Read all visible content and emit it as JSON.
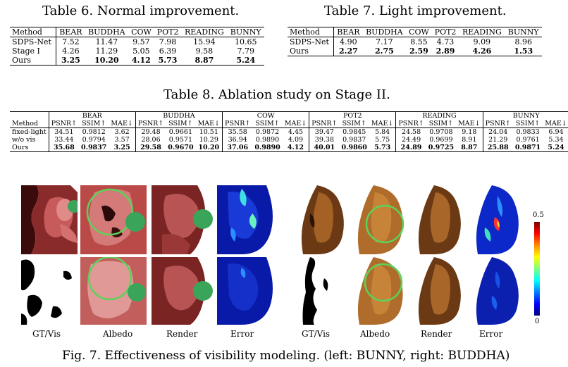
{
  "table6": {
    "caption": "Table 6. Normal improvement.",
    "headers": [
      "Method",
      "BEAR",
      "BUDDHA",
      "COW",
      "POT2",
      "READING",
      "BUNNY"
    ],
    "rows": [
      [
        "SDPS-Net",
        "7.52",
        "11.47",
        "9.57",
        "7.98",
        "15.94",
        "10.65"
      ],
      [
        "Stage I",
        "4.26",
        "11.29",
        "5.05",
        "6.39",
        "9.58",
        "7.79"
      ],
      [
        "Ours",
        "3.25",
        "10.20",
        "4.12",
        "5.73",
        "8.87",
        "5.24"
      ]
    ]
  },
  "table7": {
    "caption": "Table 7. Light improvement.",
    "headers": [
      "Method",
      "BEAR",
      "BUDDHA",
      "COW",
      "POT2",
      "READING",
      "BUNNY"
    ],
    "rows": [
      [
        "SDPS-Net",
        "4.90",
        "7.17",
        "8.55",
        "4.73",
        "9.09",
        "8.96"
      ],
      [
        "Ours",
        "2.27",
        "2.75",
        "2.59",
        "2.89",
        "4.26",
        "1.53"
      ]
    ]
  },
  "table8": {
    "caption": "Table 8. Ablation study on Stage II.",
    "method_label": "Method",
    "objects": [
      "BEAR",
      "BUDDHA",
      "COW",
      "POT2",
      "READING",
      "BUNNY"
    ],
    "metrics": [
      "PSNR↑",
      "SSIM↑",
      "MAE↓"
    ],
    "rows": [
      {
        "method": "fixed-light",
        "values": [
          "34.51",
          "0.9812",
          "3.62",
          "29.48",
          "0.9661",
          "10.51",
          "35.58",
          "0.9872",
          "4.45",
          "39.47",
          "0.9845",
          "5.84",
          "24.58",
          "0.9708",
          "9.18",
          "24.04",
          "0.9833",
          "6.94"
        ]
      },
      {
        "method": "w/o vis",
        "values": [
          "33.44",
          "0.9794",
          "3.57",
          "28.06",
          "0.9571",
          "10.29",
          "36.94",
          "0.9890",
          "4.09",
          "39.38",
          "0.9837",
          "5.75",
          "24.49",
          "0.9699",
          "8.91",
          "21.29",
          "0.9761",
          "5.34"
        ]
      },
      {
        "method": "Ours",
        "values": [
          "35.68",
          "0.9837",
          "3.25",
          "29.58",
          "0.9670",
          "10.20",
          "37.06",
          "0.9890",
          "4.12",
          "40.01",
          "0.9860",
          "5.73",
          "24.89",
          "0.9725",
          "8.87",
          "25.88",
          "0.9871",
          "5.24"
        ]
      }
    ]
  },
  "figure": {
    "column_labels_left": [
      "GT/Vis",
      "Albedo",
      "Render",
      "Error"
    ],
    "column_labels_right": [
      "GT/Vis",
      "Albedo",
      "Render",
      "Error"
    ],
    "colorbar_max": "0.5",
    "colorbar_min": "0",
    "caption": "Fig. 7. Effectiveness of visibility modeling. (left: BUNNY, right: BUDDHA)"
  }
}
